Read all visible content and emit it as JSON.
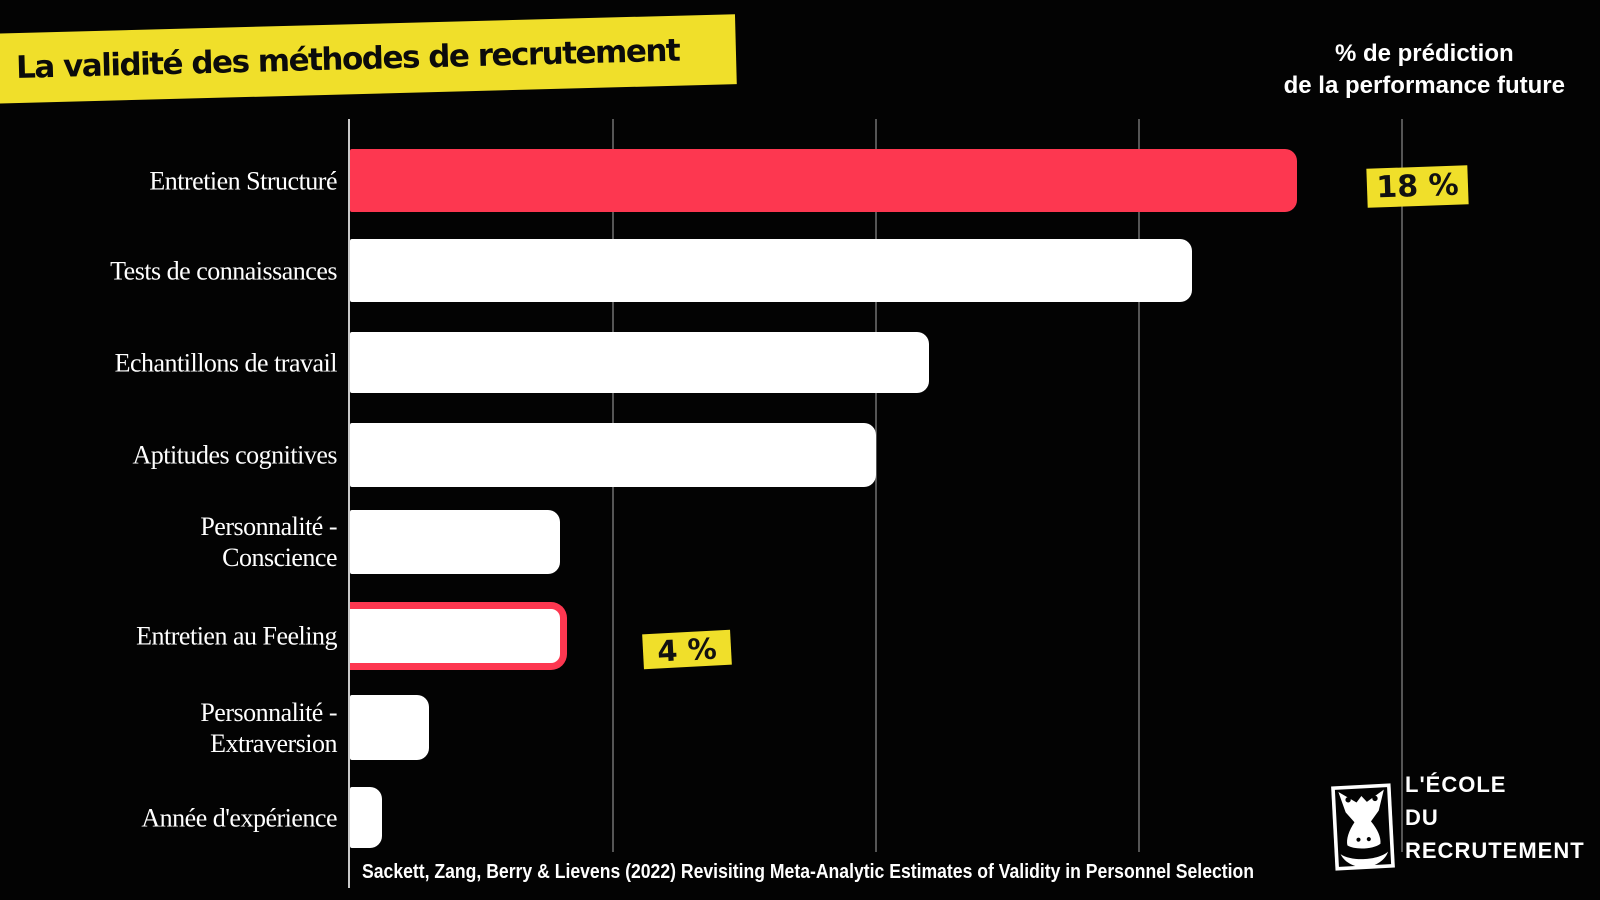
{
  "header": {
    "title": "La validité des méthodes de recrutement",
    "axis_note_line1": "% de prédiction",
    "axis_note_line2": "de la performance future"
  },
  "chart_data": {
    "type": "bar",
    "orientation": "horizontal",
    "title": "La validité des méthodes de recrutement",
    "x_axis_label": "% de prédiction de la performance future",
    "xlim": [
      0,
      20
    ],
    "gridlines_pct": [
      5,
      10,
      15,
      20
    ],
    "grid": "vertical unlabeled gridlines every 5%",
    "legend": "none",
    "categories": [
      "Entretien Structuré",
      "Tests de connaissances",
      "Echantillons de travail",
      "Aptitudes cognitives",
      "Personnalité - Conscience",
      "Entretien au Feeling",
      "Personnalité - Extraversion",
      "Année d'expérience"
    ],
    "label_lines": [
      [
        "Entretien Structuré"
      ],
      [
        "Tests de connaissances"
      ],
      [
        "Echantillons de travail"
      ],
      [
        "Aptitudes cognitives"
      ],
      [
        "Personnalité -",
        "Conscience"
      ],
      [
        "Entretien au Feeling"
      ],
      [
        "Personnalité -",
        "Extraversion"
      ],
      [
        "Année d'expérience"
      ]
    ],
    "values": [
      18,
      16,
      11,
      10,
      4,
      4,
      1.5,
      0.6
    ],
    "bar_styles": [
      "red-fill",
      "white-fill",
      "white-fill",
      "white-fill",
      "white-fill",
      "white-fill-red-border",
      "white-fill",
      "white-fill"
    ],
    "annotations": [
      {
        "text": "18 %",
        "category": "Entretien Structuré"
      },
      {
        "text": "4 %",
        "category": "Entretien au Feeling"
      }
    ]
  },
  "source": "Sackett, Zang, Berry & Lievens (2022) Revisiting Meta-Analytic Estimates of Validity in Personnel Selection",
  "logo": {
    "lines": [
      "L'ÉCOLE",
      "DU",
      "RECRUTEMENT"
    ],
    "icon": "gorilla-in-tilted-frame"
  },
  "colors": {
    "background": "#030303",
    "red": "#FD3750",
    "yellow": "#F0DF2A",
    "bar_white": "#FFFFFF",
    "gridline": "#555555",
    "axis_line": "#C9C9C9",
    "text_light": "#FFFFFF",
    "text_dark": "#111111"
  }
}
